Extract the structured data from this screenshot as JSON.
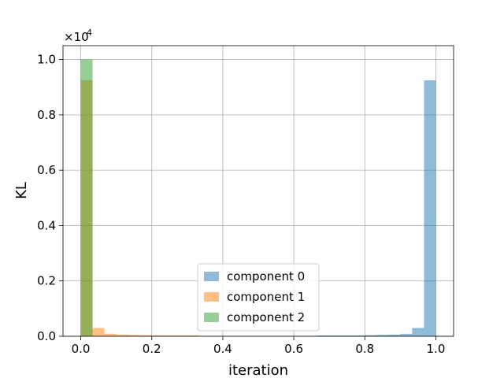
{
  "chart_data": {
    "type": "bar",
    "title": "",
    "xlabel": "iteration",
    "ylabel": "KL",
    "y_scale_label": "×10",
    "y_scale_exponent": "4",
    "xlim": [
      -0.05,
      1.05
    ],
    "ylim": [
      0,
      1.05
    ],
    "grid": true,
    "legend_position": "lower center",
    "bin_width": 0.03333,
    "x_ticks": [
      0.0,
      0.2,
      0.4,
      0.6,
      0.8,
      1.0
    ],
    "x_tick_labels": [
      "0.0",
      "0.2",
      "0.4",
      "0.6",
      "0.8",
      "1.0"
    ],
    "y_ticks": [
      0.0,
      0.2,
      0.4,
      0.6,
      0.8,
      1.0
    ],
    "y_tick_labels": [
      "0.0",
      "0.2",
      "0.4",
      "0.6",
      "0.8",
      "1.0"
    ],
    "bin_starts": [
      0.0,
      0.0333,
      0.0667,
      0.1,
      0.1333,
      0.1667,
      0.2,
      0.2333,
      0.2667,
      0.3,
      0.3333,
      0.3667,
      0.4,
      0.4333,
      0.4667,
      0.5,
      0.5333,
      0.5667,
      0.6,
      0.6333,
      0.6667,
      0.7,
      0.7333,
      0.7667,
      0.8,
      0.8333,
      0.8667,
      0.9,
      0.9333,
      0.9667
    ],
    "series": [
      {
        "name": "component 0",
        "color": "#1f77b4",
        "values": [
          0,
          0,
          0,
          0,
          0,
          0,
          0,
          0,
          0,
          0,
          0,
          0,
          0,
          0,
          0,
          0,
          0,
          0,
          0.001,
          0.001,
          0.003,
          0.003,
          0.003,
          0.003,
          0.004,
          0.005,
          0.006,
          0.009,
          0.03,
          0.925
        ]
      },
      {
        "name": "component 1",
        "color": "#ff7f0e",
        "values": [
          0.925,
          0.03,
          0.009,
          0.006,
          0.005,
          0.004,
          0.003,
          0.003,
          0.003,
          0.003,
          0.001,
          0.001,
          0,
          0,
          0,
          0,
          0,
          0,
          0,
          0,
          0,
          0,
          0,
          0,
          0,
          0,
          0,
          0,
          0,
          0
        ]
      },
      {
        "name": "component 2",
        "color": "#2ca02c",
        "values": [
          1.0,
          0,
          0,
          0,
          0,
          0,
          0,
          0,
          0,
          0,
          0,
          0,
          0,
          0,
          0,
          0,
          0,
          0,
          0,
          0,
          0,
          0,
          0,
          0,
          0,
          0,
          0,
          0,
          0,
          0
        ]
      }
    ]
  }
}
